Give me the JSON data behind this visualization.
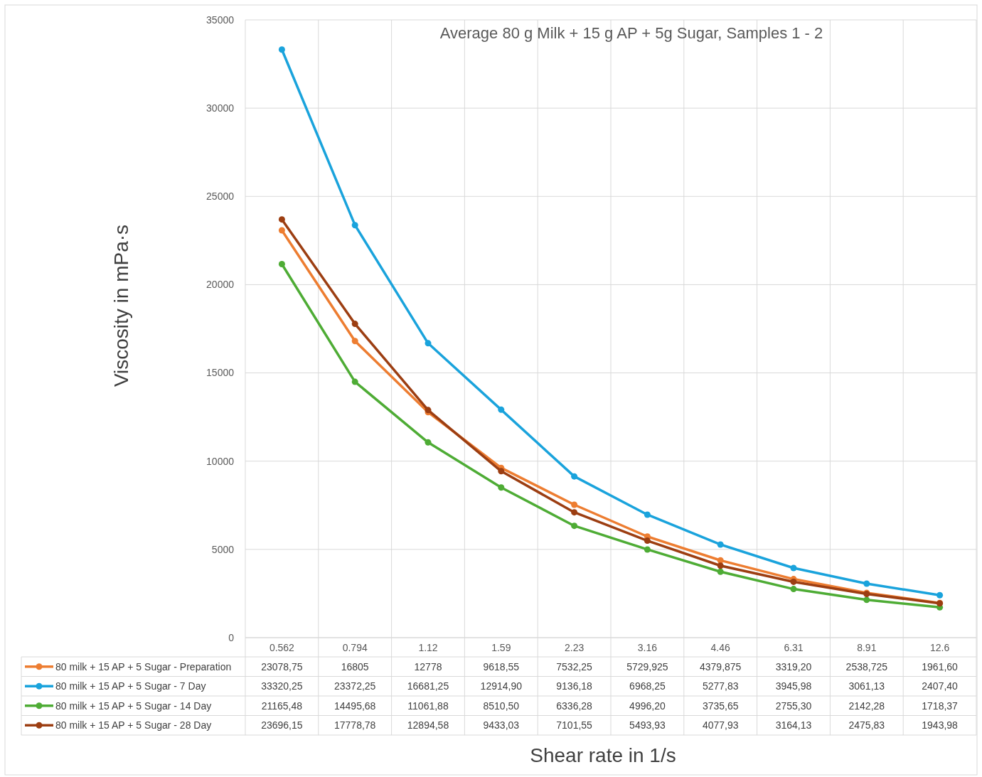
{
  "chart_data": {
    "type": "line",
    "title": "Average 80 g Milk + 15 g AP + 5g Sugar, Samples 1 - 2",
    "xlabel": "Shear rate in 1/s",
    "ylabel": "Viscosity in mPa·s",
    "categories": [
      "0.562",
      "0.794",
      "1.12",
      "1.59",
      "2.23",
      "3.16",
      "4.46",
      "6.31",
      "8.91",
      "12.6"
    ],
    "ylim": [
      0,
      35000
    ],
    "yticks": [
      0,
      5000,
      10000,
      15000,
      20000,
      25000,
      30000,
      35000
    ],
    "grid": true,
    "legend": "bottom",
    "marker": "circle",
    "line_style": "solid",
    "series": [
      {
        "name": "80 milk + 15 AP + 5 Sugar - Preparation",
        "color": "#ed7d31",
        "values": [
          23078.75,
          16805,
          12778,
          9618.55,
          7532.25,
          5729.925,
          4379.875,
          3319.2,
          2538.725,
          1961.6
        ],
        "value_labels": [
          "23078,75",
          "16805",
          "12778",
          "9618,55",
          "7532,25",
          "5729,925",
          "4379,875",
          "3319,20",
          "2538,725",
          "1961,60"
        ]
      },
      {
        "name": "80 milk + 15 AP + 5 Sugar - 7 Day",
        "color": "#1aa3dc",
        "values": [
          33320.25,
          23372.25,
          16681.25,
          12914.9,
          9136.18,
          6968.25,
          5277.83,
          3945.98,
          3061.13,
          2407.4
        ],
        "value_labels": [
          "33320,25",
          "23372,25",
          "16681,25",
          "12914,90",
          "9136,18",
          "6968,25",
          "5277,83",
          "3945,98",
          "3061,13",
          "2407,40"
        ]
      },
      {
        "name": "80 milk + 15 AP + 5 Sugar - 14 Day",
        "color": "#4eac35",
        "values": [
          21165.48,
          14495.68,
          11061.88,
          8510.5,
          6336.28,
          4996.2,
          3735.65,
          2755.3,
          2142.28,
          1718.37
        ],
        "value_labels": [
          "21165,48",
          "14495,68",
          "11061,88",
          "8510,50",
          "6336,28",
          "4996,20",
          "3735,65",
          "2755,30",
          "2142,28",
          "1718,37"
        ]
      },
      {
        "name": "80 milk + 15 AP + 5 Sugar - 28 Day",
        "color": "#9c3e12",
        "values": [
          23696.15,
          17778.78,
          12894.58,
          9433.03,
          7101.55,
          5493.93,
          4077.93,
          3164.13,
          2475.83,
          1943.98
        ],
        "value_labels": [
          "23696,15",
          "17778,78",
          "12894,58",
          "9433,03",
          "7101,55",
          "5493,93",
          "4077,93",
          "3164,13",
          "2475,83",
          "1943,98"
        ]
      }
    ]
  }
}
